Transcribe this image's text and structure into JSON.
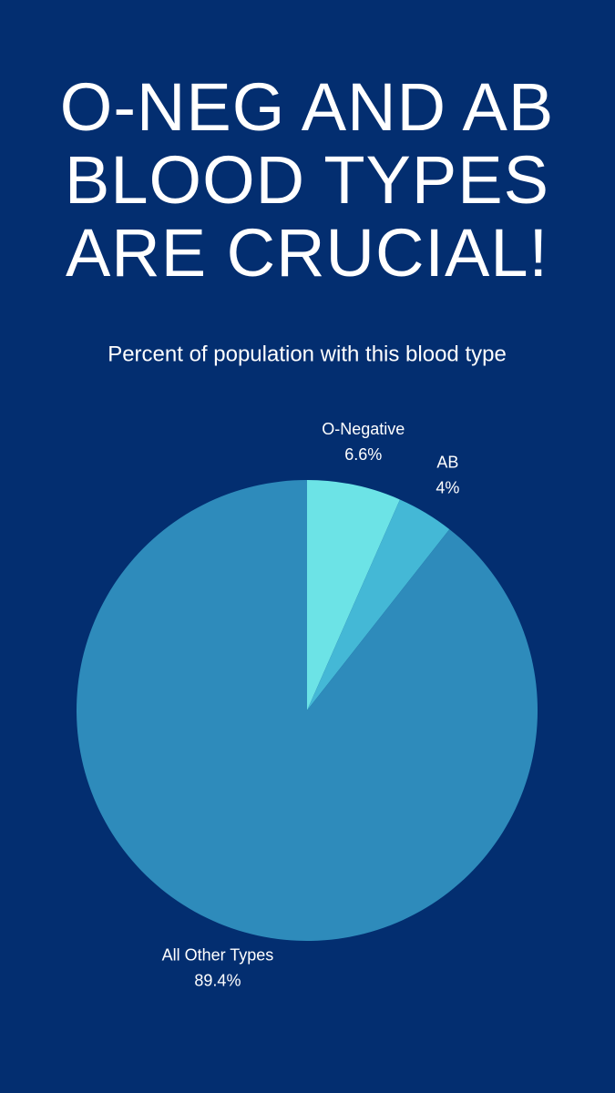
{
  "chart_data": {
    "type": "pie",
    "title": "O-NEG AND AB BLOOD TYPES ARE CRUCIAL!",
    "subtitle": "Percent of population with this blood type",
    "categories": [
      "O-Negative",
      "AB",
      "All Other Types"
    ],
    "values": [
      6.6,
      4,
      89.4
    ],
    "value_labels": [
      "6.6%",
      "4%",
      "89.4%"
    ],
    "colors": [
      "#6ce3e6",
      "#44b8d6",
      "#2e8bbb"
    ]
  }
}
